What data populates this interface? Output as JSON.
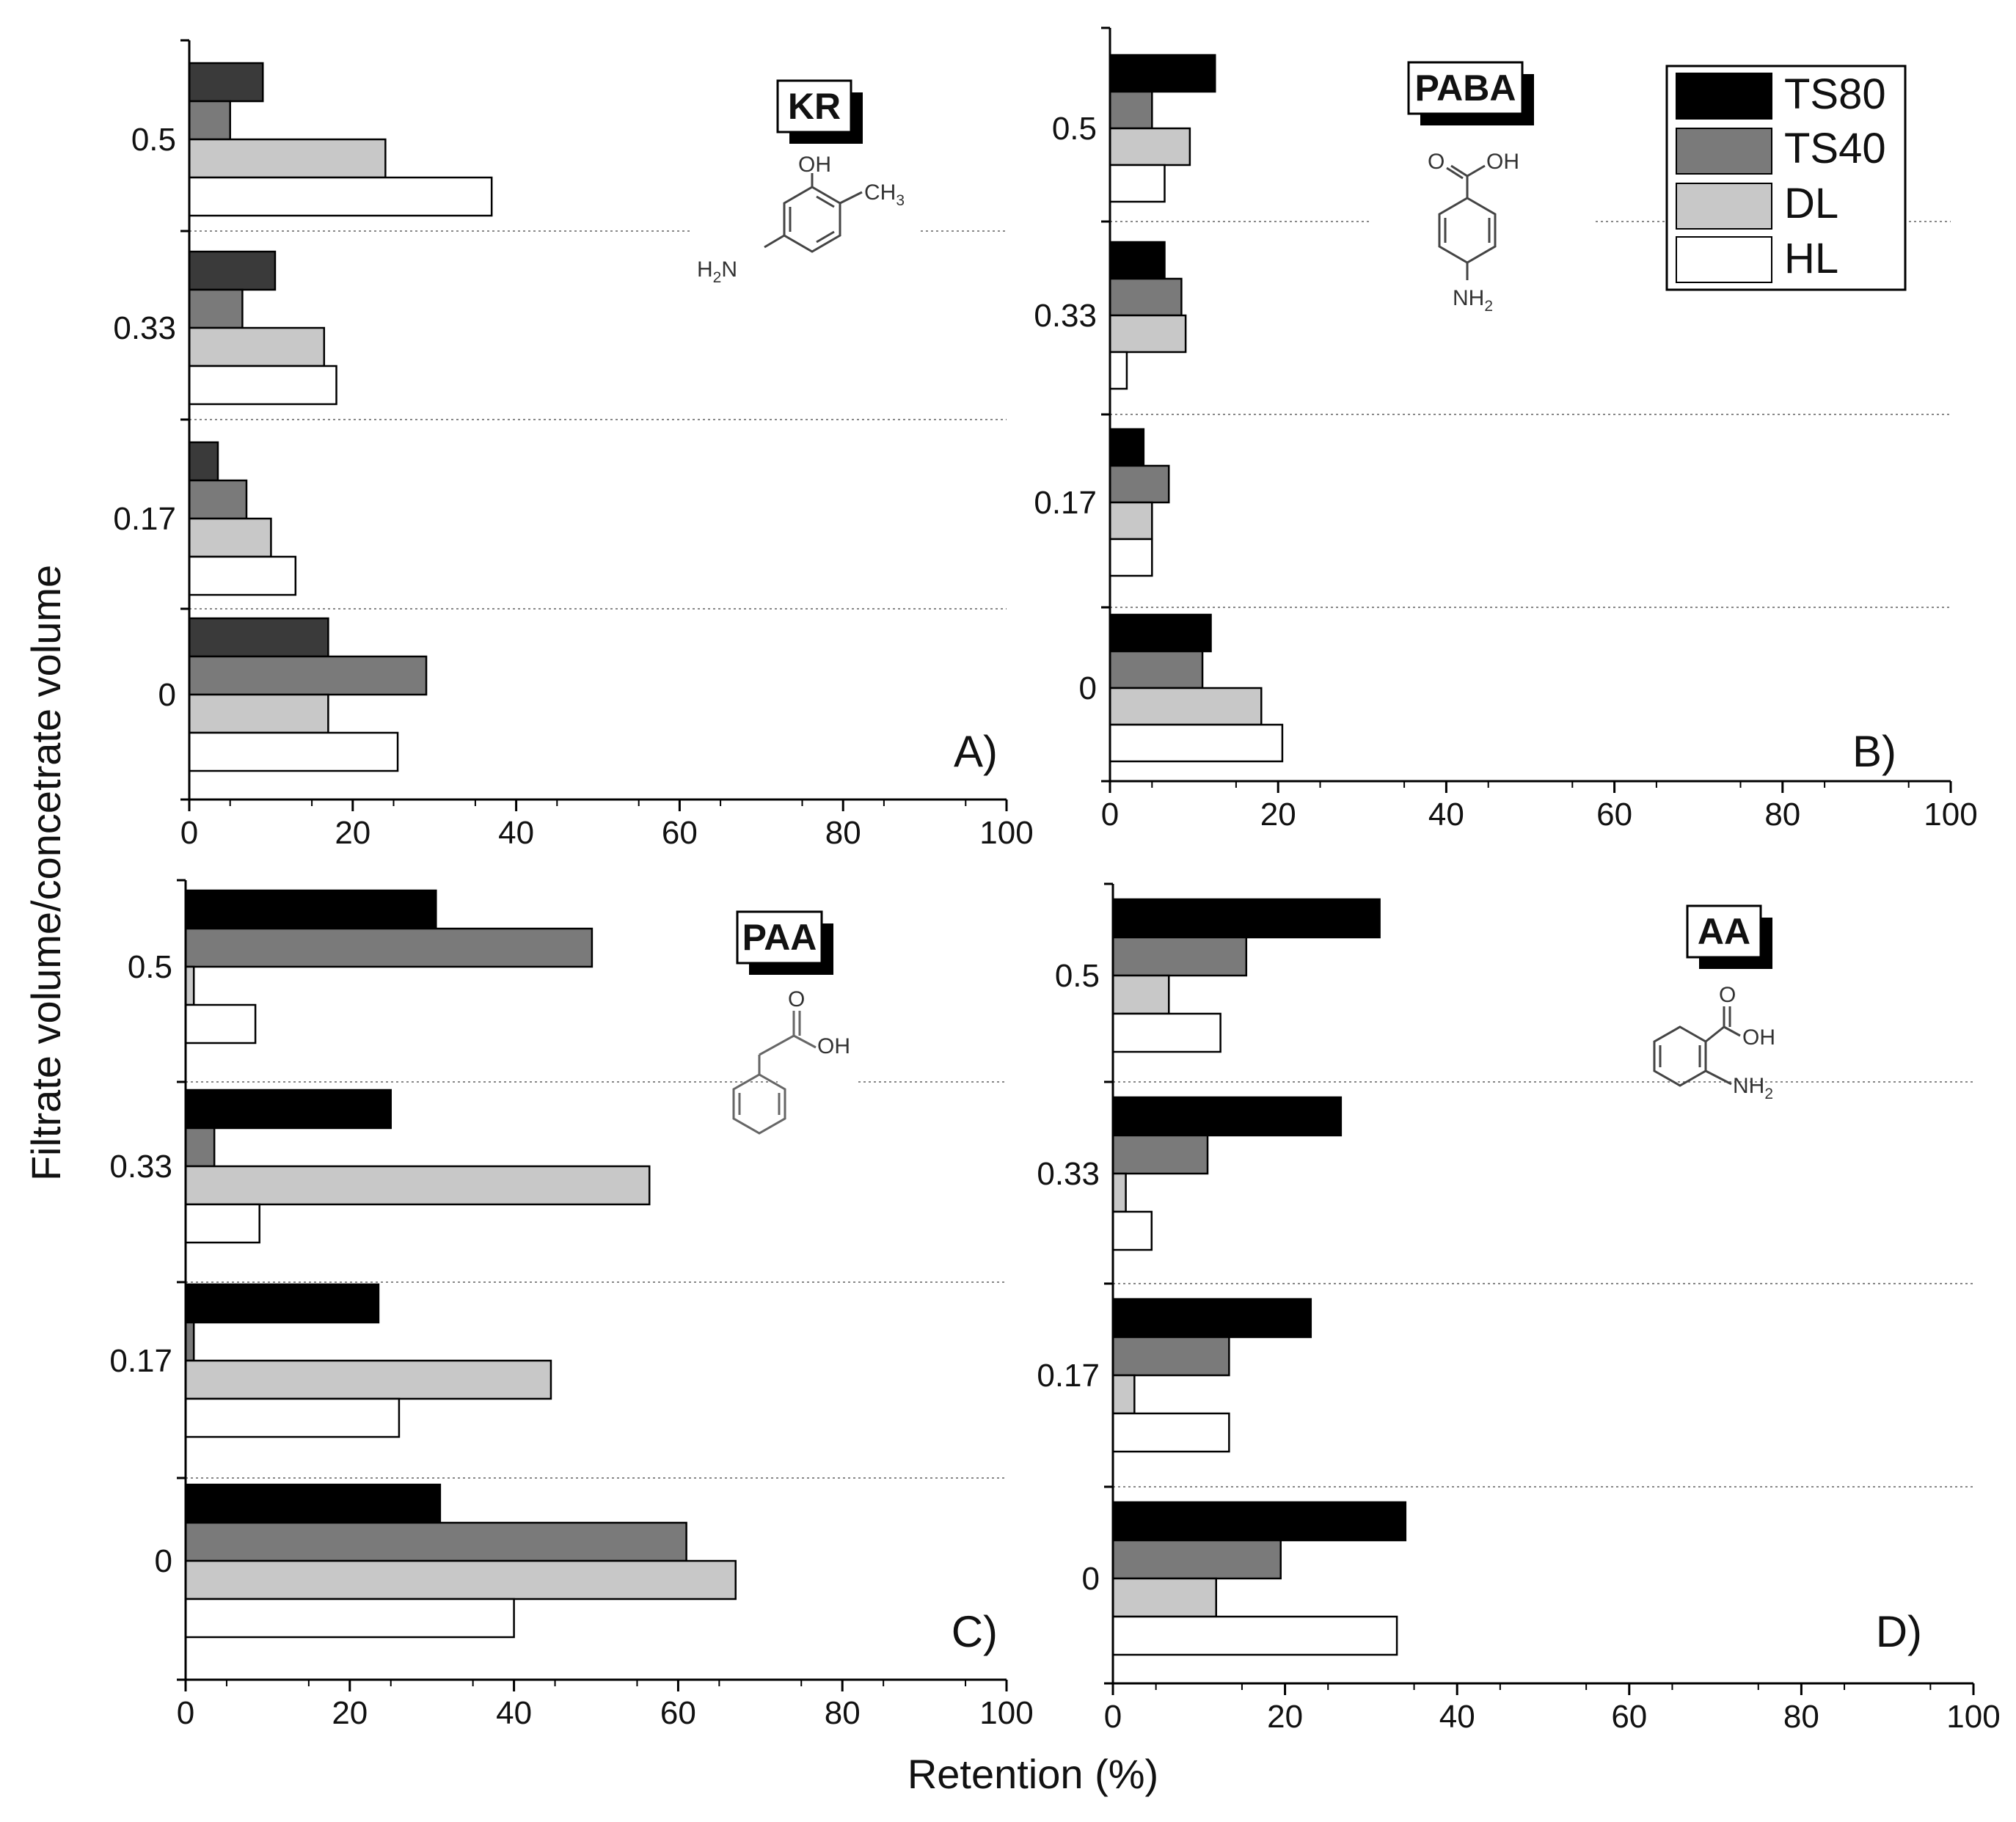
{
  "chart_data": [
    {
      "type": "bar",
      "orientation": "horizontal",
      "panel": "A)",
      "compound": "KR",
      "categories": [
        "0",
        "0.17",
        "0.33",
        "0.5"
      ],
      "series": [
        {
          "name": "TS80",
          "values": [
            17,
            3.5,
            10.5,
            9
          ]
        },
        {
          "name": "TS40",
          "values": [
            29,
            7,
            6.5,
            5
          ]
        },
        {
          "name": "DL",
          "values": [
            17,
            10,
            16.5,
            24
          ]
        },
        {
          "name": "HL",
          "values": [
            25.5,
            13,
            18,
            37
          ]
        }
      ],
      "xlim": [
        0,
        100
      ],
      "x_ticks": [
        "0",
        "20",
        "40",
        "60",
        "80",
        "100"
      ],
      "chem": {
        "oh": "OH",
        "ch3_base": "CH",
        "ch3_sub": "3",
        "nh2_left": "H",
        "nh2_sub": "2",
        "nh2_right": "N"
      }
    },
    {
      "type": "bar",
      "orientation": "horizontal",
      "panel": "B)",
      "compound": "PABA",
      "categories": [
        "0",
        "0.17",
        "0.33",
        "0.5"
      ],
      "series": [
        {
          "name": "TS80",
          "values": [
            12,
            4,
            6.5,
            12.5
          ]
        },
        {
          "name": "TS40",
          "values": [
            11,
            7,
            8.5,
            5
          ]
        },
        {
          "name": "DL",
          "values": [
            18,
            5,
            9,
            9.5
          ]
        },
        {
          "name": "HL",
          "values": [
            20.5,
            5,
            2,
            6.5
          ]
        }
      ],
      "xlim": [
        0,
        100
      ],
      "x_ticks": [
        "0",
        "20",
        "40",
        "60",
        "80",
        "100"
      ],
      "chem": {
        "o": "O",
        "oh": "OH",
        "nh2_base": "NH",
        "nh2_sub": "2"
      }
    },
    {
      "type": "bar",
      "orientation": "horizontal",
      "panel": "C)",
      "compound": "PAA",
      "categories": [
        "0",
        "0.17",
        "0.33",
        "0.5"
      ],
      "series": [
        {
          "name": "TS80",
          "values": [
            31,
            23.5,
            25,
            30.5
          ]
        },
        {
          "name": "TS40",
          "values": [
            61,
            1,
            3.5,
            49.5
          ]
        },
        {
          "name": "DL",
          "values": [
            67,
            44.5,
            56.5,
            1
          ]
        },
        {
          "name": "HL",
          "values": [
            40,
            26,
            9,
            8.5
          ]
        }
      ],
      "xlim": [
        0,
        100
      ],
      "x_ticks": [
        "0",
        "20",
        "40",
        "60",
        "80",
        "100"
      ],
      "chem": {
        "o": "O",
        "oh": "OH"
      }
    },
    {
      "type": "bar",
      "orientation": "horizontal",
      "panel": "D)",
      "compound": "AA",
      "categories": [
        "0",
        "0.17",
        "0.33",
        "0.5"
      ],
      "series": [
        {
          "name": "TS80",
          "values": [
            34,
            23,
            26.5,
            31
          ]
        },
        {
          "name": "TS40",
          "values": [
            19.5,
            13.5,
            11,
            15.5
          ]
        },
        {
          "name": "DL",
          "values": [
            12,
            2.5,
            1.5,
            6.5
          ]
        },
        {
          "name": "HL",
          "values": [
            33,
            13.5,
            4.5,
            12.5
          ]
        }
      ],
      "xlim": [
        0,
        100
      ],
      "x_ticks": [
        "0",
        "20",
        "40",
        "60",
        "80",
        "100"
      ],
      "chem": {
        "o": "O",
        "oh": "OH",
        "nh2_base": "NH",
        "nh2_sub": "2"
      }
    }
  ],
  "legend": [
    "TS80",
    "TS40",
    "DL",
    "HL"
  ],
  "series_colors": {
    "TS80": "#000000",
    "TS40": "#7a7a7a",
    "DL": "#c8c8c8",
    "HL": "#ffffff"
  },
  "panel_a_ts80_color": "#3a3a3a",
  "xlabel": "Retention (%)",
  "ylabel": "Filtrate volume/concetrate volume"
}
